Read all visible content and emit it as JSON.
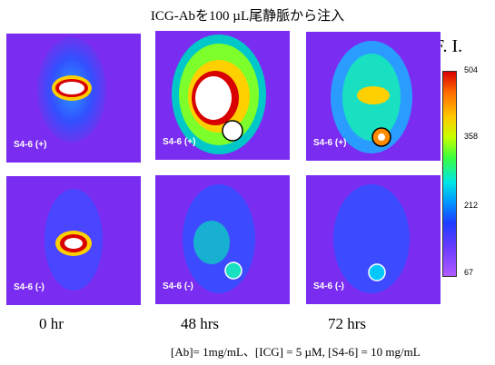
{
  "title": "ICG-Abを100 µL尾静脈から注入",
  "fi_label": "F. I.",
  "colorbar": {
    "ticks": [
      "504",
      "358",
      "212",
      "67"
    ]
  },
  "panels": [
    {
      "label": "S4-6 (+)"
    },
    {
      "label": "S4-6 (+)"
    },
    {
      "label": "S4-6 (+)"
    },
    {
      "label": "S4-6 (-)"
    },
    {
      "label": "S4-6 (-)"
    },
    {
      "label": "S4-6 (-)"
    }
  ],
  "time_labels": [
    "0 hr",
    "48 hrs",
    "72 hrs"
  ],
  "footer": "[Ab]= 1mg/mL、[ICG] = 5 µM, [S4-6] = 10 mg/mL",
  "colors": {
    "background": "#7a2cf0",
    "mouse": "#3c4bff",
    "hot": "#ffffff"
  }
}
